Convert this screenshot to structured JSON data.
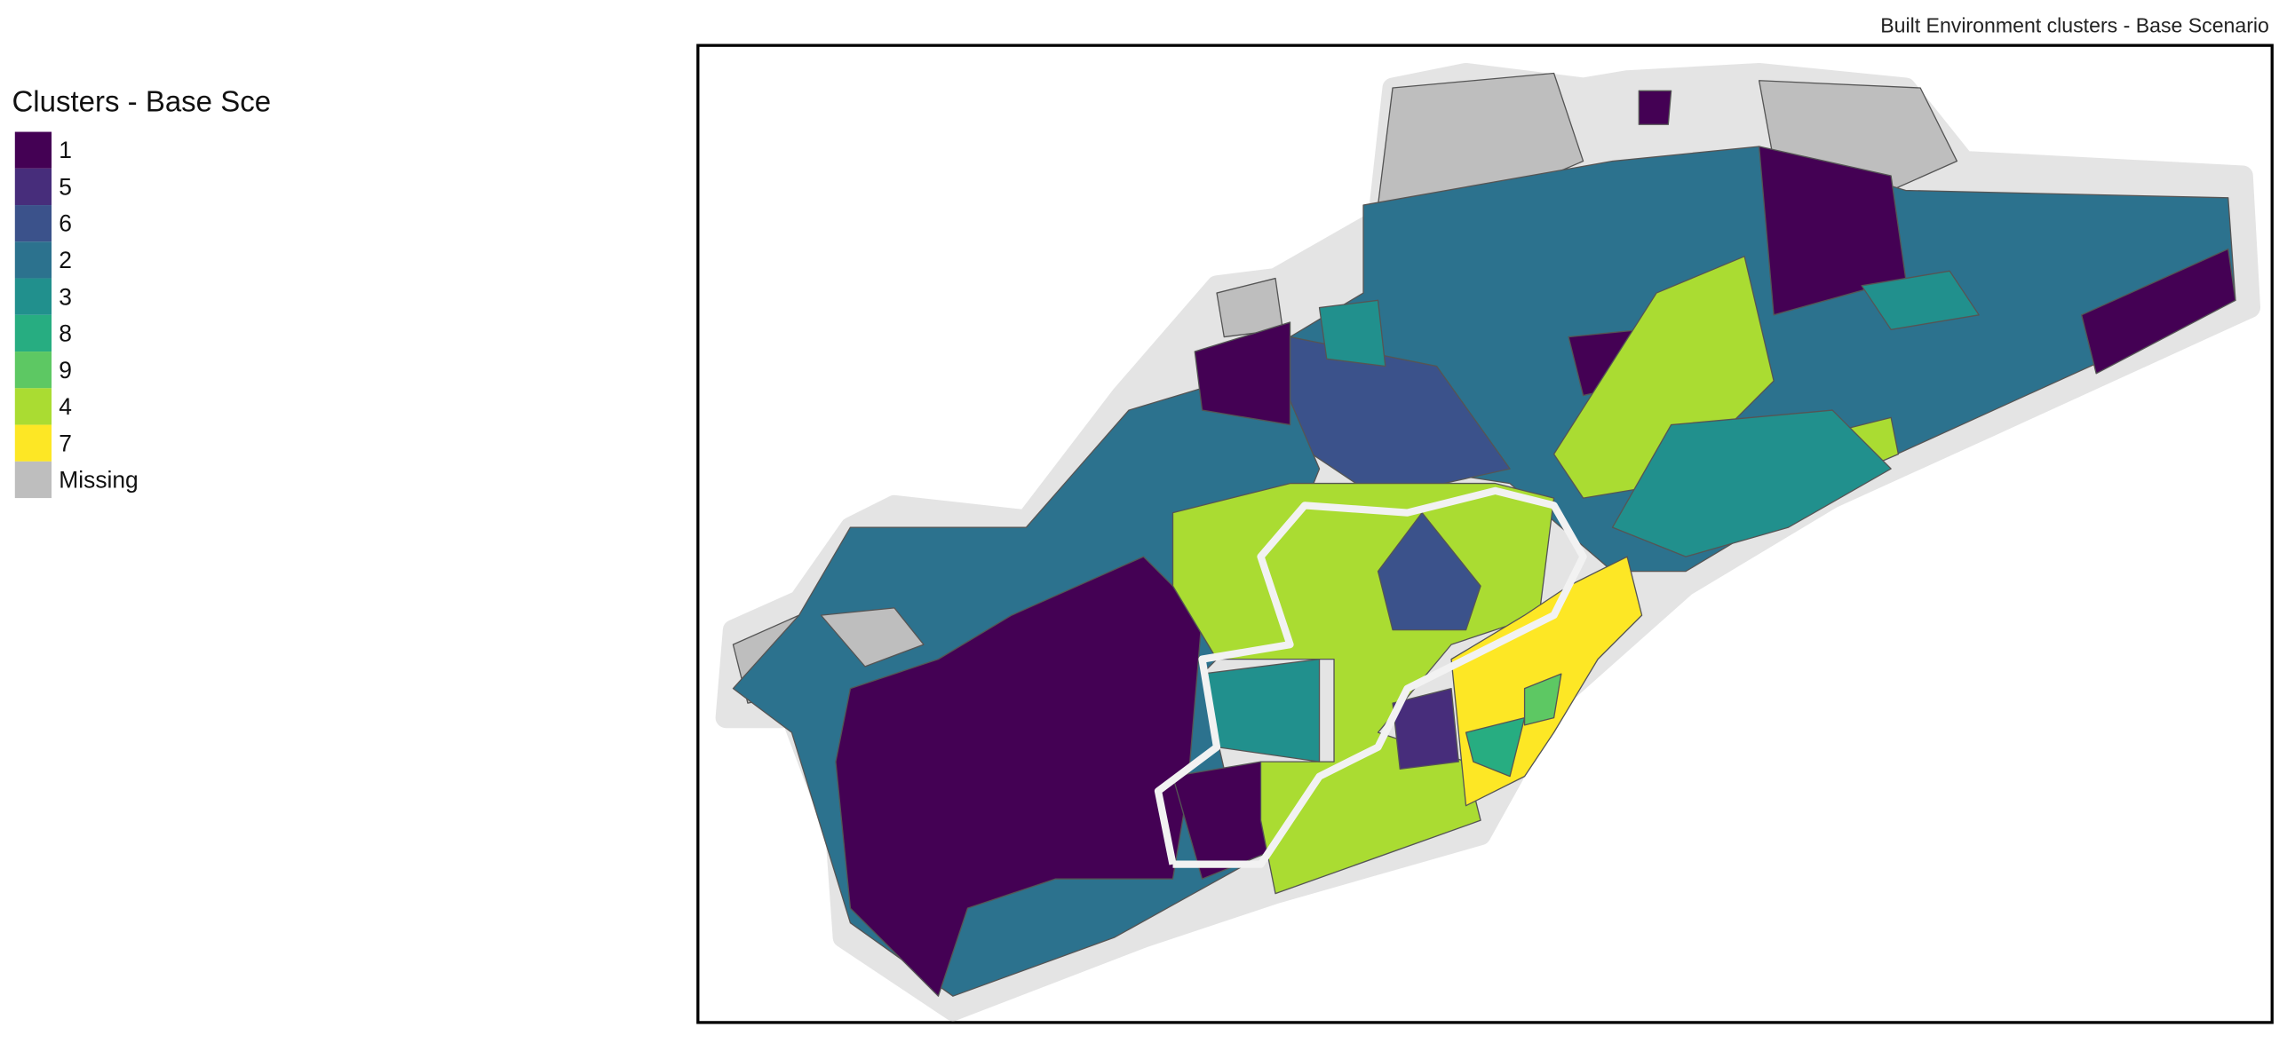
{
  "title": "Built Environment clusters - Base Scenario",
  "legend": {
    "title": "Clusters - Base Sce",
    "items": [
      {
        "label": "1",
        "color": "#440154"
      },
      {
        "label": "5",
        "color": "#472d7b"
      },
      {
        "label": "6",
        "color": "#3b528b"
      },
      {
        "label": "2",
        "color": "#2c728e"
      },
      {
        "label": "3",
        "color": "#21908d"
      },
      {
        "label": "8",
        "color": "#27ad81"
      },
      {
        "label": "9",
        "color": "#5dc863"
      },
      {
        "label": "4",
        "color": "#aadc32"
      },
      {
        "label": "7",
        "color": "#fde725"
      },
      {
        "label": "Missing",
        "color": "#bebebe"
      }
    ]
  }
}
